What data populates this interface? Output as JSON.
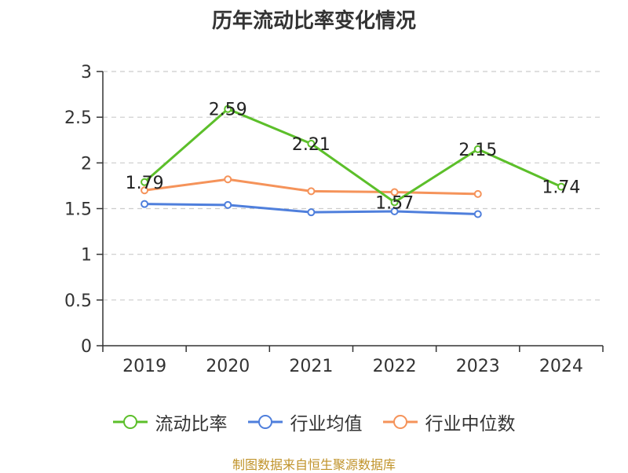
{
  "chart_data": {
    "type": "line",
    "title": "历年流动比率变化情况",
    "categories": [
      "2019",
      "2020",
      "2021",
      "2022",
      "2023",
      "2024"
    ],
    "ylim": [
      0,
      3
    ],
    "yticks": [
      "0",
      "0.5",
      "1",
      "1.5",
      "2",
      "2.5",
      "3"
    ],
    "grid": true,
    "legend_position": "bottom",
    "series": [
      {
        "name": "流动比率",
        "color": "#5cbf2a",
        "values": [
          1.79,
          2.59,
          2.21,
          1.57,
          2.15,
          1.74
        ],
        "labels": [
          "1.79",
          "2.59",
          "2.21",
          "1.57",
          "2.15",
          "1.74"
        ]
      },
      {
        "name": "行业均值",
        "color": "#4f7fdc",
        "values": [
          1.55,
          1.54,
          1.46,
          1.47,
          1.44,
          null
        ]
      },
      {
        "name": "行业中位数",
        "color": "#f5935a",
        "values": [
          1.7,
          1.82,
          1.69,
          1.68,
          1.66,
          null
        ]
      }
    ]
  },
  "source": "制图数据来自恒生聚源数据库"
}
